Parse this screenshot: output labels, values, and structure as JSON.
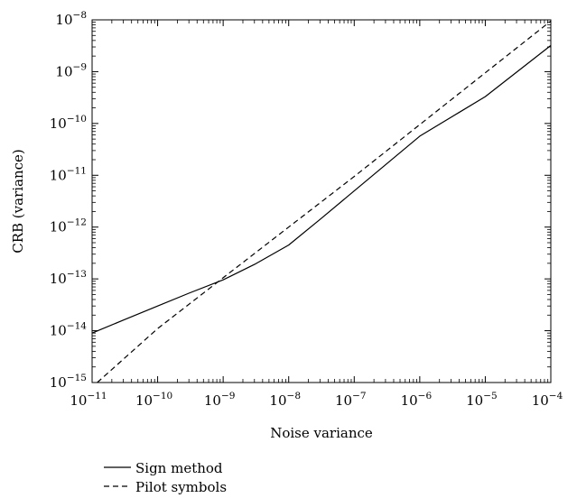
{
  "chart_data": {
    "type": "line",
    "title": "",
    "xlabel": "Noise variance",
    "ylabel": "CRB (variance)",
    "x_scale": "log",
    "y_scale": "log",
    "xlim": [
      1e-11,
      0.0001
    ],
    "ylim": [
      1e-15,
      1e-08
    ],
    "grid": false,
    "legend_position": "bottom-left, below plot",
    "x_ticks": [
      {
        "base": "10",
        "exp": "−11"
      },
      {
        "base": "10",
        "exp": "−10"
      },
      {
        "base": "10",
        "exp": "−9"
      },
      {
        "base": "10",
        "exp": "−8"
      },
      {
        "base": "10",
        "exp": "−7"
      },
      {
        "base": "10",
        "exp": "−6"
      },
      {
        "base": "10",
        "exp": "−5"
      },
      {
        "base": "10",
        "exp": "−4"
      }
    ],
    "y_ticks": [
      {
        "base": "10",
        "exp": "−15"
      },
      {
        "base": "10",
        "exp": "−14"
      },
      {
        "base": "10",
        "exp": "−13"
      },
      {
        "base": "10",
        "exp": "−12"
      },
      {
        "base": "10",
        "exp": "−11"
      },
      {
        "base": "10",
        "exp": "−10"
      },
      {
        "base": "10",
        "exp": "−9"
      },
      {
        "base": "10",
        "exp": "−8"
      }
    ],
    "series": [
      {
        "name": "Sign method",
        "style": "solid",
        "color": "#000000",
        "x": [
          1e-11,
          3e-11,
          1e-10,
          3e-10,
          1e-09,
          3e-09,
          1e-08,
          3e-08,
          1e-07,
          1e-06,
          1e-05,
          0.0001
        ],
        "y": [
          9e-15,
          1.6e-14,
          3e-14,
          5.3e-14,
          9.6e-14,
          1.9e-13,
          4.5e-13,
          1.4e-12,
          5e-12,
          5.7e-11,
          3.3e-10,
          3.2e-09
        ]
      },
      {
        "name": "Pilot symbols",
        "style": "dashed",
        "color": "#000000",
        "x": [
          1.2e-11,
          1e-10,
          1e-09,
          1e-08,
          1e-07,
          1e-06,
          1e-05,
          0.0001
        ],
        "y": [
          1e-15,
          1.1e-14,
          1.05e-13,
          1e-12,
          9.5e-12,
          9.5e-11,
          9.5e-10,
          9.5e-09
        ]
      }
    ]
  }
}
